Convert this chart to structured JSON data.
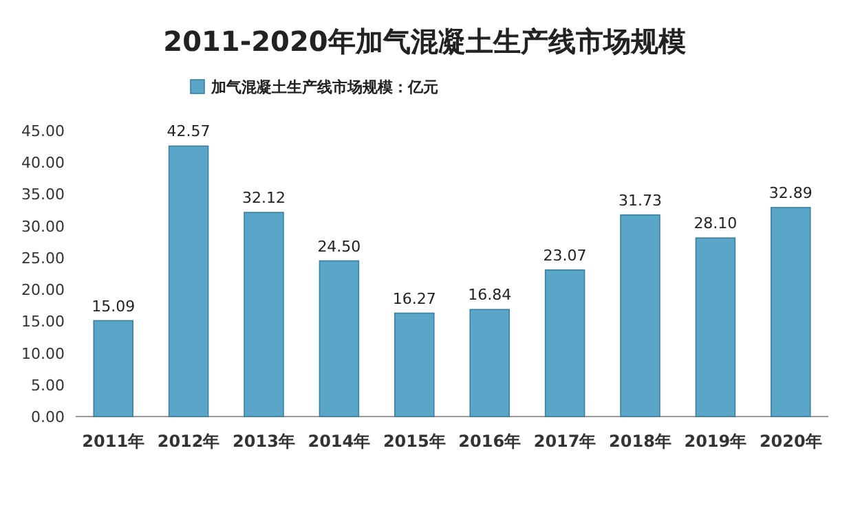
{
  "chart_data": {
    "type": "bar",
    "title": "2011-2020年加气混凝土生产线市场规模",
    "categories": [
      "2011年",
      "2012年",
      "2013年",
      "2014年",
      "2015年",
      "2016年",
      "2017年",
      "2018年",
      "2019年",
      "2020年"
    ],
    "series": [
      {
        "name": "加气混凝土生产线市场规模：亿元",
        "color": "#5aa6c9",
        "values": [
          15.09,
          42.57,
          32.12,
          24.5,
          16.27,
          16.84,
          23.07,
          31.73,
          28.1,
          32.89
        ],
        "value_labels": [
          "15.09",
          "42.57",
          "32.12",
          "24.50",
          "16.27",
          "16.84",
          "23.07",
          "31.73",
          "28.10",
          "32.89"
        ]
      }
    ],
    "ylim": [
      0,
      45
    ],
    "yticks": [
      {
        "value": 0,
        "label": "0.00"
      },
      {
        "value": 5,
        "label": "5.00"
      },
      {
        "value": 10,
        "label": "10.00"
      },
      {
        "value": 15,
        "label": "15.00"
      },
      {
        "value": 20,
        "label": "20.00"
      },
      {
        "value": 25,
        "label": "25.00"
      },
      {
        "value": 30,
        "label": "30.00"
      },
      {
        "value": 35,
        "label": "35.00"
      },
      {
        "value": 40,
        "label": "40.00"
      },
      {
        "value": 45,
        "label": "45.00"
      }
    ],
    "legend": "top"
  }
}
